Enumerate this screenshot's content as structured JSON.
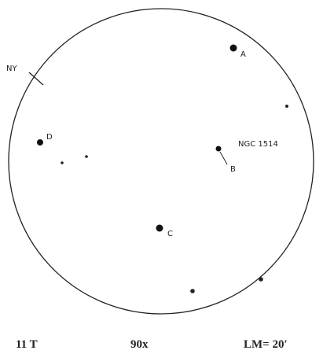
{
  "direction_label": "NY",
  "objects": [
    {
      "label": "A"
    },
    {
      "label": "D"
    },
    {
      "label": "NGC 1514"
    },
    {
      "label": "B"
    },
    {
      "label": "C"
    }
  ],
  "footer": {
    "telescope": "11 T",
    "magnification": "90x",
    "limiting_magnitude": "LM= 20′"
  }
}
